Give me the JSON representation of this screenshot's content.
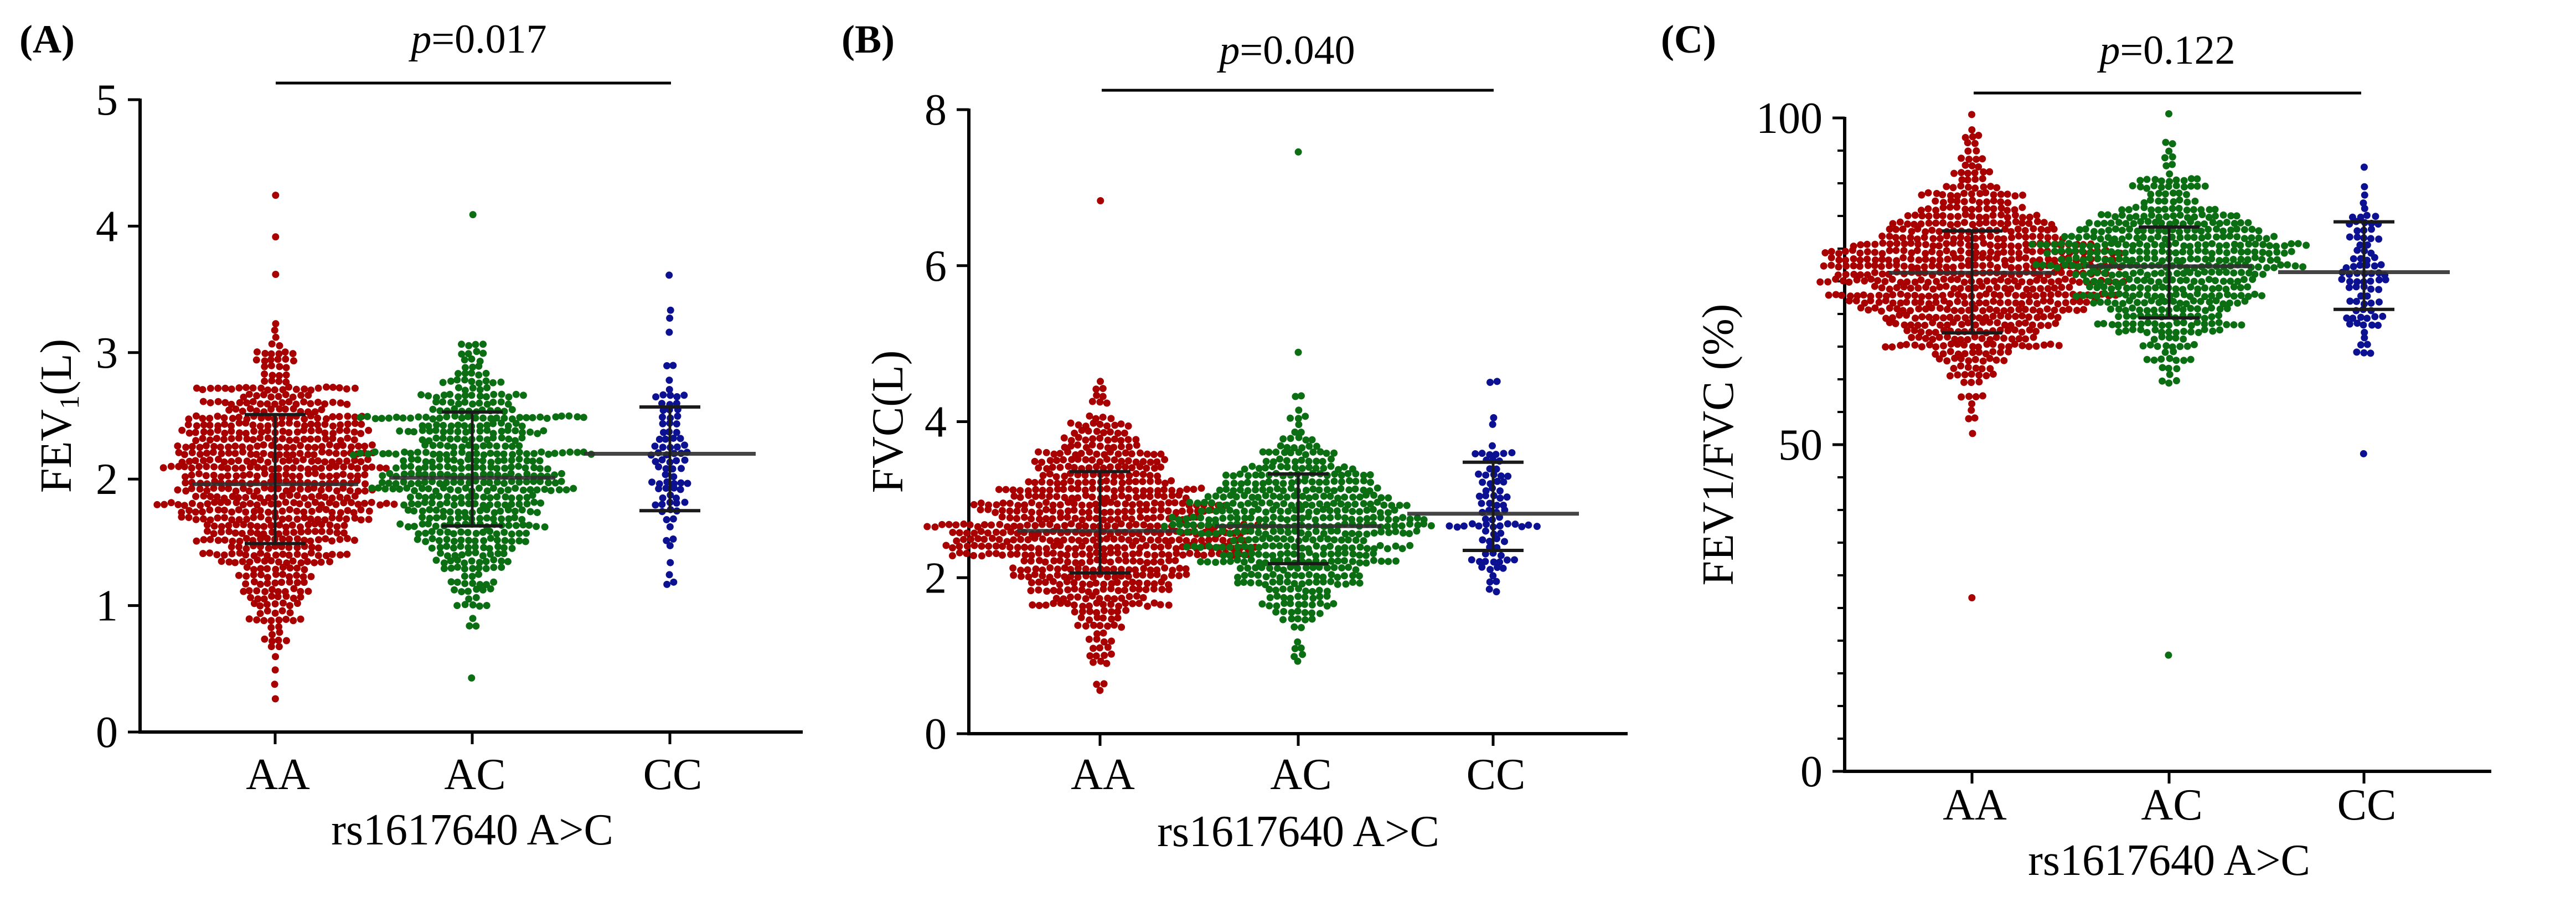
{
  "figure": {
    "colors": {
      "AA": "#a80000",
      "AC": "#0b6e12",
      "CC": "#0c1191",
      "axis": "#000000",
      "mean_line": "#303030",
      "sd_line": "#1a1a1a"
    }
  },
  "chart_data": [
    {
      "type": "scatter",
      "subtype": "dot-plot (beeswarm) with mean and SD bars",
      "panel_label": "(A)",
      "title": "",
      "p_value_prefix": "p",
      "p_value_text": "=0.017",
      "xlabel": "rs1617640 A>C",
      "ylabel_main": "FEV",
      "ylabel_sub": "1",
      "ylabel_tail": "(L)",
      "categories": [
        "AA",
        "AC",
        "CC"
      ],
      "ylim": [
        0,
        5
      ],
      "yticks": [
        "0",
        "1",
        "2",
        "3",
        "4",
        "5"
      ],
      "minor_ticks": false,
      "grid": false,
      "series": [
        {
          "name": "AA",
          "n_approx": 700,
          "mean": 1.96,
          "sd_upper": 2.51,
          "sd_lower": 1.49,
          "min": 0.27,
          "max": 4.25
        },
        {
          "name": "AC",
          "n_approx": 520,
          "mean": 2.01,
          "sd_upper": 2.53,
          "sd_lower": 1.63,
          "min": 0.45,
          "max": 4.07
        },
        {
          "name": "CC",
          "n_approx": 85,
          "mean": 2.2,
          "sd_upper": 2.57,
          "sd_lower": 1.75,
          "min": 1.2,
          "max": 3.6
        }
      ]
    },
    {
      "type": "scatter",
      "subtype": "dot-plot (beeswarm) with mean and SD bars",
      "panel_label": "(B)",
      "title": "",
      "p_value_prefix": "p",
      "p_value_text": "=0.040",
      "xlabel": "rs1617640 A>C",
      "ylabel_main": "FVC(L)",
      "ylabel_sub": "",
      "ylabel_tail": "",
      "categories": [
        "AA",
        "AC",
        "CC"
      ],
      "ylim": [
        0,
        8
      ],
      "yticks": [
        "0",
        "2",
        "4",
        "6",
        "8"
      ],
      "minor_ticks": false,
      "grid": false,
      "series": [
        {
          "name": "AA",
          "n_approx": 700,
          "mean": 2.6,
          "sd_upper": 3.36,
          "sd_lower": 2.06,
          "min": 0.52,
          "max": 6.78
        },
        {
          "name": "AC",
          "n_approx": 520,
          "mean": 2.66,
          "sd_upper": 3.33,
          "sd_lower": 2.18,
          "min": 0.88,
          "max": 7.5
        },
        {
          "name": "CC",
          "n_approx": 85,
          "mean": 2.82,
          "sd_upper": 3.48,
          "sd_lower": 2.35,
          "min": 1.85,
          "max": 4.52
        }
      ]
    },
    {
      "type": "scatter",
      "subtype": "dot-plot (beeswarm) with mean and SD bars",
      "panel_label": "(C)",
      "title": "",
      "p_value_prefix": "p",
      "p_value_text": "=0.122",
      "xlabel": "rs1617640 A>C",
      "ylabel_main": "FEV1/FVC (%)",
      "ylabel_sub": "",
      "ylabel_tail": "",
      "categories": [
        "AA",
        "AC",
        "CC"
      ],
      "ylim": [
        0,
        100
      ],
      "yticks": [
        "0",
        "50",
        "100"
      ],
      "minor_ticks": true,
      "minor_tick_step": 5,
      "grid": false,
      "series": [
        {
          "name": "AA",
          "n_approx": 700,
          "mean": 76.3,
          "sd_upper": 82.7,
          "sd_lower": 67.1,
          "min": 26.5,
          "max": 100.0
        },
        {
          "name": "AC",
          "n_approx": 520,
          "mean": 77.3,
          "sd_upper": 83.3,
          "sd_lower": 69.4,
          "min": 17.5,
          "max": 100.0
        },
        {
          "name": "CC",
          "n_approx": 85,
          "mean": 76.4,
          "sd_upper": 84.1,
          "sd_lower": 70.7,
          "min": 48.5,
          "max": 92.5
        }
      ]
    }
  ]
}
